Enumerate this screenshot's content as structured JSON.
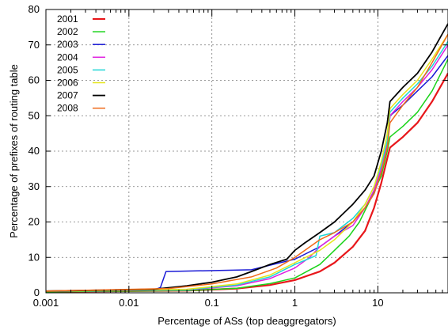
{
  "chart_data": {
    "type": "line",
    "title": "",
    "xlabel": "Percentage of ASs (top deaggregators)",
    "ylabel": "Percentage of prefixes of routing table",
    "xscale": "log",
    "xlim": [
      0.001,
      70
    ],
    "ylim": [
      0,
      80
    ],
    "x_ticks": [
      {
        "value": 0.001,
        "label": "0.001"
      },
      {
        "value": 0.01,
        "label": "0.01"
      },
      {
        "value": 0.1,
        "label": "0.1"
      },
      {
        "value": 1,
        "label": "1"
      },
      {
        "value": 10,
        "label": "10"
      }
    ],
    "y_ticks": [
      0,
      10,
      20,
      30,
      40,
      50,
      60,
      70,
      80
    ],
    "grid": true,
    "legend_position": "top-left",
    "series": [
      {
        "name": "2001",
        "color": "#e8171b",
        "width": 2.2,
        "points": [
          [
            0.001,
            0.3
          ],
          [
            0.05,
            0.6
          ],
          [
            0.2,
            1.2
          ],
          [
            0.5,
            2.2
          ],
          [
            1,
            3.6
          ],
          [
            2,
            6
          ],
          [
            3,
            8.5
          ],
          [
            5,
            13
          ],
          [
            7,
            17.5
          ],
          [
            9,
            24
          ],
          [
            11,
            31
          ],
          [
            13,
            38
          ],
          [
            14,
            41
          ],
          [
            20,
            44
          ],
          [
            30,
            48
          ],
          [
            45,
            54
          ],
          [
            70,
            62
          ]
        ]
      },
      {
        "name": "2002",
        "color": "#1ad31a",
        "width": 1.5,
        "points": [
          [
            0.001,
            0.3
          ],
          [
            0.05,
            0.6
          ],
          [
            0.2,
            1.3
          ],
          [
            0.5,
            2.6
          ],
          [
            1,
            4.2
          ],
          [
            2,
            8
          ],
          [
            3,
            12
          ],
          [
            4.5,
            16
          ],
          [
            6,
            20
          ],
          [
            8,
            26
          ],
          [
            11,
            33
          ],
          [
            13,
            40
          ],
          [
            14,
            44
          ],
          [
            20,
            47
          ],
          [
            30,
            51
          ],
          [
            45,
            57
          ],
          [
            70,
            66
          ]
        ]
      },
      {
        "name": "2003",
        "color": "#1a1ad6",
        "width": 1.5,
        "points": [
          [
            0.001,
            0.4
          ],
          [
            0.02,
            0.8
          ],
          [
            0.024,
            1.5
          ],
          [
            0.028,
            6
          ],
          [
            0.3,
            6.5
          ],
          [
            0.5,
            7.8
          ],
          [
            1,
            9.5
          ],
          [
            2,
            13
          ],
          [
            3,
            16
          ],
          [
            5,
            20
          ],
          [
            7,
            24
          ],
          [
            9,
            28
          ],
          [
            11,
            34
          ],
          [
            13,
            42
          ],
          [
            14,
            50
          ],
          [
            20,
            53
          ],
          [
            30,
            57
          ],
          [
            45,
            61
          ],
          [
            70,
            67
          ]
        ]
      },
      {
        "name": "2004",
        "color": "#e020e0",
        "width": 1.5,
        "points": [
          [
            0.001,
            0.4
          ],
          [
            0.05,
            0.8
          ],
          [
            0.2,
            2
          ],
          [
            0.5,
            4
          ],
          [
            1,
            7
          ],
          [
            1.5,
            10
          ],
          [
            2,
            13
          ],
          [
            3,
            16
          ],
          [
            5,
            19
          ],
          [
            7,
            24
          ],
          [
            9,
            29
          ],
          [
            11,
            35
          ],
          [
            13,
            42
          ],
          [
            14,
            50
          ],
          [
            20,
            54
          ],
          [
            30,
            58
          ],
          [
            45,
            63
          ],
          [
            70,
            70
          ]
        ]
      },
      {
        "name": "2005",
        "color": "#20d6d6",
        "width": 1.5,
        "points": [
          [
            0.001,
            0.4
          ],
          [
            0.05,
            0.9
          ],
          [
            0.2,
            2.2
          ],
          [
            0.5,
            4.5
          ],
          [
            1,
            8
          ],
          [
            1.8,
            10.5
          ],
          [
            2,
            16
          ],
          [
            3,
            17
          ],
          [
            5,
            21
          ],
          [
            7,
            25
          ],
          [
            9,
            30
          ],
          [
            11,
            36
          ],
          [
            13,
            43
          ],
          [
            14,
            51
          ],
          [
            20,
            55
          ],
          [
            30,
            59
          ],
          [
            45,
            64
          ],
          [
            70,
            71
          ]
        ]
      },
      {
        "name": "2006",
        "color": "#e6e61a",
        "width": 1.5,
        "points": [
          [
            0.001,
            0.4
          ],
          [
            0.05,
            1
          ],
          [
            0.2,
            2.5
          ],
          [
            0.5,
            5
          ],
          [
            1,
            8.5
          ],
          [
            2,
            12
          ],
          [
            3,
            15
          ],
          [
            5,
            20
          ],
          [
            7,
            25
          ],
          [
            9,
            30
          ],
          [
            11,
            37
          ],
          [
            13,
            45
          ],
          [
            14,
            52
          ],
          [
            20,
            56
          ],
          [
            30,
            60
          ],
          [
            45,
            66
          ],
          [
            70,
            73
          ]
        ]
      },
      {
        "name": "2007",
        "color": "#000000",
        "width": 1.8,
        "points": [
          [
            0.001,
            0.5
          ],
          [
            0.02,
            1
          ],
          [
            0.05,
            2
          ],
          [
            0.1,
            3
          ],
          [
            0.2,
            4.5
          ],
          [
            0.3,
            6
          ],
          [
            0.5,
            8
          ],
          [
            0.8,
            9.5
          ],
          [
            1,
            12
          ],
          [
            1.3,
            14
          ],
          [
            2,
            17
          ],
          [
            3,
            20
          ],
          [
            5,
            25
          ],
          [
            7,
            29
          ],
          [
            9,
            33
          ],
          [
            11,
            40
          ],
          [
            13,
            48
          ],
          [
            14,
            54
          ],
          [
            20,
            58
          ],
          [
            30,
            62
          ],
          [
            45,
            68
          ],
          [
            70,
            76
          ]
        ]
      },
      {
        "name": "2008",
        "color": "#f06a1a",
        "width": 1.5,
        "points": [
          [
            0.001,
            0.5
          ],
          [
            0.03,
            1.2
          ],
          [
            0.1,
            2.5
          ],
          [
            0.3,
            4.5
          ],
          [
            0.6,
            7
          ],
          [
            1,
            10
          ],
          [
            2,
            15
          ],
          [
            3,
            17
          ],
          [
            5,
            20
          ],
          [
            7,
            24
          ],
          [
            9,
            28
          ],
          [
            11,
            34
          ],
          [
            13,
            41
          ],
          [
            14,
            48
          ],
          [
            20,
            53
          ],
          [
            30,
            58
          ],
          [
            45,
            65
          ],
          [
            70,
            73
          ]
        ]
      }
    ]
  }
}
